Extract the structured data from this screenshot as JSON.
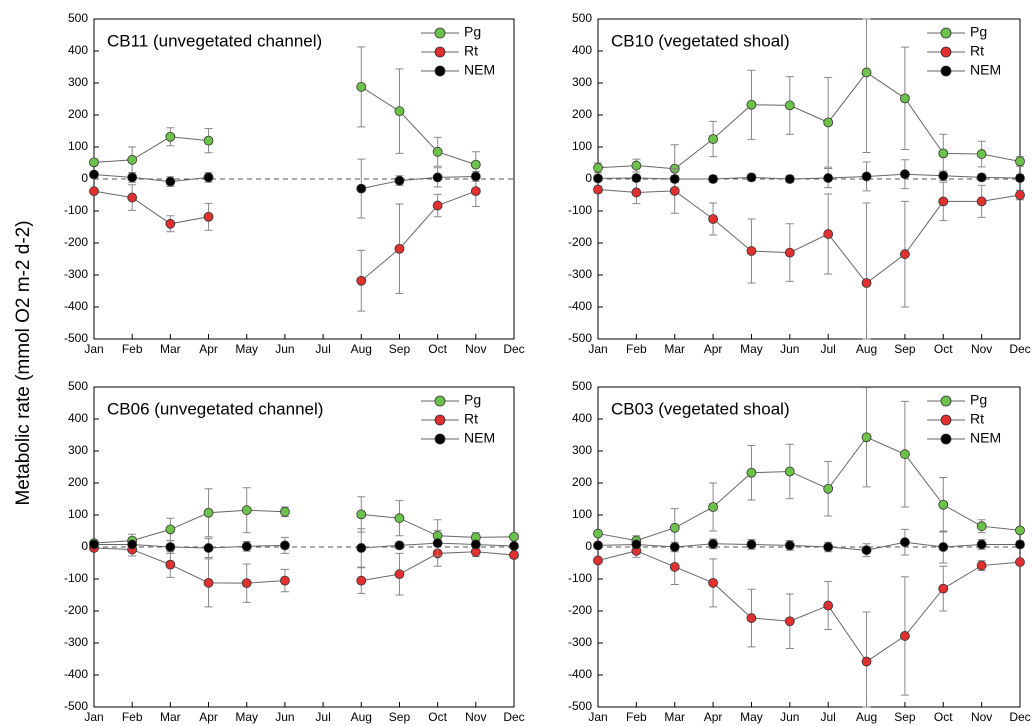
{
  "y_label": "Metabolic rate (mmol O2 m-2 d-2)",
  "chart_data": [
    {
      "type": "line",
      "title": "CB11 (unvegetated channel)",
      "categories": [
        "Jan",
        "Feb",
        "Mar",
        "Apr",
        "May",
        "Jun",
        "Jul",
        "Aug",
        "Sep",
        "Oct",
        "Nov",
        "Dec"
      ],
      "ylim": [
        -500,
        500
      ],
      "yticks": [
        -500,
        -400,
        -300,
        -200,
        -100,
        0,
        100,
        200,
        300,
        400,
        500
      ],
      "hline": 0,
      "series": [
        {
          "name": "Pg",
          "color": "#6cc24a",
          "values": [
            52,
            60,
            132,
            120,
            null,
            null,
            null,
            288,
            212,
            85,
            45,
            null
          ],
          "errors": [
            null,
            40,
            28,
            38,
            null,
            null,
            null,
            125,
            132,
            45,
            40,
            null
          ]
        },
        {
          "name": "Rt",
          "color": "#e03030",
          "values": [
            -38,
            -58,
            -140,
            -118,
            null,
            null,
            null,
            -318,
            -218,
            -83,
            -38,
            null
          ],
          "errors": [
            null,
            40,
            25,
            42,
            null,
            null,
            null,
            95,
            140,
            35,
            48,
            null
          ]
        },
        {
          "name": "NEM",
          "color": "#000000",
          "values": [
            14,
            5,
            -8,
            5,
            null,
            null,
            null,
            -30,
            -5,
            5,
            8,
            null
          ],
          "errors": [
            null,
            15,
            15,
            15,
            null,
            null,
            null,
            92,
            15,
            30,
            15,
            null
          ]
        }
      ]
    },
    {
      "type": "line",
      "title": "CB10 (vegetated shoal)",
      "categories": [
        "Jan",
        "Feb",
        "Mar",
        "Apr",
        "May",
        "Jun",
        "Jul",
        "Aug",
        "Sep",
        "Oct",
        "Nov",
        "Dec"
      ],
      "ylim": [
        -500,
        500
      ],
      "yticks": [
        -500,
        -400,
        -300,
        -200,
        -100,
        0,
        100,
        200,
        300,
        400,
        500
      ],
      "hline": 0,
      "series": [
        {
          "name": "Pg",
          "color": "#6cc24a",
          "values": [
            35,
            42,
            32,
            125,
            232,
            230,
            177,
            333,
            252,
            80,
            78,
            55
          ],
          "errors": [
            15,
            20,
            75,
            55,
            108,
            90,
            140,
            250,
            160,
            60,
            40,
            15
          ]
        },
        {
          "name": "Rt",
          "color": "#e03030",
          "values": [
            -33,
            -42,
            -37,
            -125,
            -225,
            -230,
            -172,
            -325,
            -235,
            -70,
            -70,
            -50
          ],
          "errors": [
            10,
            35,
            70,
            50,
            100,
            90,
            125,
            250,
            165,
            60,
            50,
            15
          ]
        },
        {
          "name": "NEM",
          "color": "#000000",
          "values": [
            2,
            3,
            0,
            0,
            5,
            0,
            3,
            8,
            15,
            10,
            5,
            3
          ],
          "errors": [
            10,
            10,
            10,
            10,
            10,
            10,
            30,
            45,
            45,
            15,
            10,
            10
          ]
        }
      ]
    },
    {
      "type": "line",
      "title": "CB06 (unvegetated channel)",
      "categories": [
        "Jan",
        "Feb",
        "Mar",
        "Apr",
        "May",
        "Jun",
        "Jul",
        "Aug",
        "Sep",
        "Oct",
        "Nov",
        "Dec"
      ],
      "ylim": [
        -500,
        500
      ],
      "yticks": [
        -500,
        -400,
        -300,
        -200,
        -100,
        0,
        100,
        200,
        300,
        400,
        500
      ],
      "hline": 0,
      "series": [
        {
          "name": "Pg",
          "color": "#6cc24a",
          "values": [
            12,
            20,
            55,
            107,
            115,
            110,
            null,
            102,
            90,
            35,
            30,
            32
          ],
          "errors": [
            5,
            20,
            35,
            75,
            70,
            15,
            null,
            55,
            55,
            50,
            15,
            5
          ]
        },
        {
          "name": "Rt",
          "color": "#e03030",
          "values": [
            -3,
            -8,
            -55,
            -112,
            -113,
            -105,
            null,
            -105,
            -85,
            -20,
            -15,
            -25
          ],
          "errors": [
            5,
            20,
            40,
            75,
            60,
            35,
            null,
            40,
            65,
            40,
            15,
            5
          ]
        },
        {
          "name": "NEM",
          "color": "#000000",
          "values": [
            8,
            8,
            0,
            -3,
            2,
            5,
            null,
            -3,
            5,
            12,
            8,
            3
          ],
          "errors": [
            8,
            10,
            20,
            30,
            15,
            25,
            null,
            60,
            10,
            40,
            10,
            5
          ]
        }
      ]
    },
    {
      "type": "line",
      "title": "CB03 (vegetated shoal)",
      "categories": [
        "Jan",
        "Feb",
        "Mar",
        "Apr",
        "May",
        "Jun",
        "Jul",
        "Aug",
        "Sep",
        "Oct",
        "Nov",
        "Dec"
      ],
      "ylim": [
        -500,
        500
      ],
      "yticks": [
        -500,
        -400,
        -300,
        -200,
        -100,
        0,
        100,
        200,
        300,
        400,
        500
      ],
      "hline": 0,
      "series": [
        {
          "name": "Pg",
          "color": "#6cc24a",
          "values": [
            42,
            20,
            60,
            125,
            232,
            236,
            182,
            343,
            290,
            132,
            65,
            52
          ],
          "errors": [
            5,
            15,
            60,
            75,
            85,
            85,
            85,
            155,
            165,
            85,
            20,
            5
          ]
        },
        {
          "name": "Rt",
          "color": "#e03030",
          "values": [
            -42,
            -12,
            -62,
            -112,
            -222,
            -232,
            -183,
            -358,
            -278,
            -130,
            -58,
            -47
          ],
          "errors": [
            5,
            20,
            55,
            75,
            90,
            85,
            75,
            155,
            185,
            70,
            15,
            5
          ]
        },
        {
          "name": "NEM",
          "color": "#000000",
          "values": [
            5,
            8,
            0,
            10,
            8,
            5,
            0,
            -10,
            15,
            0,
            8,
            8
          ],
          "errors": [
            10,
            10,
            15,
            15,
            15,
            15,
            15,
            20,
            40,
            50,
            15,
            10
          ]
        }
      ]
    }
  ]
}
